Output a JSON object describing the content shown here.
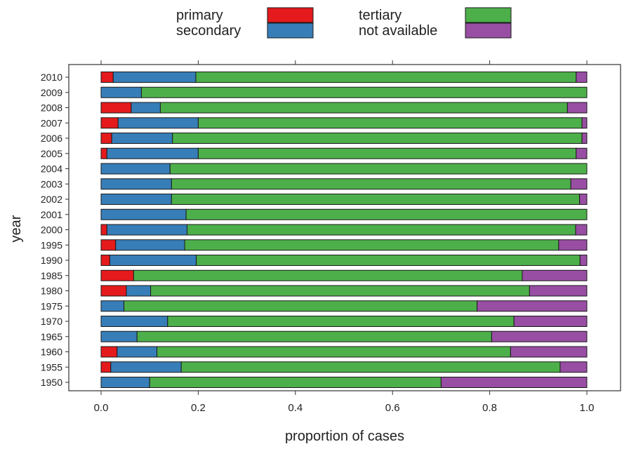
{
  "chart_data": {
    "type": "bar",
    "orientation": "horizontal",
    "stacked": true,
    "title": "",
    "xlabel": "proportion of cases",
    "ylabel": "year",
    "xlim": [
      0,
      1
    ],
    "xticks": [
      "0.0",
      "0.2",
      "0.4",
      "0.6",
      "0.8",
      "1.0"
    ],
    "xtick_values": [
      0,
      0.2,
      0.4,
      0.6,
      0.8,
      1.0
    ],
    "grid": false,
    "legend_position": "top",
    "categories": [
      "2010",
      "2009",
      "2008",
      "2007",
      "2006",
      "2005",
      "2004",
      "2003",
      "2002",
      "2001",
      "2000",
      "1995",
      "1990",
      "1985",
      "1980",
      "1975",
      "1970",
      "1965",
      "1960",
      "1955",
      "1950"
    ],
    "series": [
      {
        "name": "primary",
        "color": "#e41a1c",
        "values": [
          0.025,
          0,
          0.062,
          0.035,
          0.022,
          0.012,
          0,
          0,
          0,
          0,
          0.012,
          0.03,
          0.018,
          0.067,
          0.052,
          0,
          0,
          0,
          0.033,
          0.02,
          0
        ]
      },
      {
        "name": "secondary",
        "color": "#377eb8",
        "values": [
          0.17,
          0.083,
          0.06,
          0.165,
          0.125,
          0.188,
          0.142,
          0.145,
          0.145,
          0.175,
          0.165,
          0.142,
          0.178,
          0,
          0.05,
          0.047,
          0.137,
          0.074,
          0.082,
          0.145,
          0.1
        ]
      },
      {
        "name": "tertiary",
        "color": "#4daf4a",
        "values": [
          0.783,
          0.917,
          0.838,
          0.79,
          0.843,
          0.778,
          0.858,
          0.822,
          0.84,
          0.825,
          0.8,
          0.77,
          0.79,
          0.8,
          0.78,
          0.727,
          0.713,
          0.73,
          0.728,
          0.78,
          0.6
        ]
      },
      {
        "name": "not available",
        "color": "#984ea3",
        "values": [
          0.022,
          0,
          0.04,
          0.01,
          0.01,
          0.022,
          0,
          0.033,
          0.015,
          0,
          0.023,
          0.058,
          0.014,
          0.133,
          0.118,
          0.226,
          0.15,
          0.196,
          0.157,
          0.055,
          0.3
        ]
      }
    ]
  }
}
